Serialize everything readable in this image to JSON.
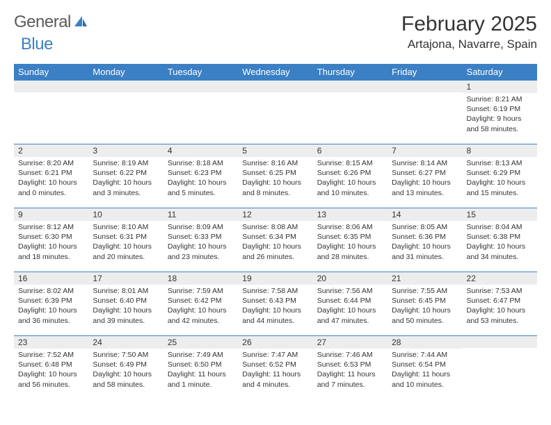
{
  "brand": {
    "word1": "General",
    "word2": "Blue"
  },
  "title": "February 2025",
  "location": "Artajona, Navarre, Spain",
  "colors": {
    "header_bg": "#3b7fc4",
    "header_text": "#ffffff",
    "daynum_bg": "#ededed",
    "border": "#3b7fc4",
    "text": "#333333",
    "logo_gray": "#5a5a5a",
    "logo_blue": "#3b7fc4"
  },
  "weekdays": [
    "Sunday",
    "Monday",
    "Tuesday",
    "Wednesday",
    "Thursday",
    "Friday",
    "Saturday"
  ],
  "weeks": [
    [
      null,
      null,
      null,
      null,
      null,
      null,
      {
        "n": "1",
        "sr": "8:21 AM",
        "ss": "6:19 PM",
        "dl": "9 hours and 58 minutes."
      }
    ],
    [
      {
        "n": "2",
        "sr": "8:20 AM",
        "ss": "6:21 PM",
        "dl": "10 hours and 0 minutes."
      },
      {
        "n": "3",
        "sr": "8:19 AM",
        "ss": "6:22 PM",
        "dl": "10 hours and 3 minutes."
      },
      {
        "n": "4",
        "sr": "8:18 AM",
        "ss": "6:23 PM",
        "dl": "10 hours and 5 minutes."
      },
      {
        "n": "5",
        "sr": "8:16 AM",
        "ss": "6:25 PM",
        "dl": "10 hours and 8 minutes."
      },
      {
        "n": "6",
        "sr": "8:15 AM",
        "ss": "6:26 PM",
        "dl": "10 hours and 10 minutes."
      },
      {
        "n": "7",
        "sr": "8:14 AM",
        "ss": "6:27 PM",
        "dl": "10 hours and 13 minutes."
      },
      {
        "n": "8",
        "sr": "8:13 AM",
        "ss": "6:29 PM",
        "dl": "10 hours and 15 minutes."
      }
    ],
    [
      {
        "n": "9",
        "sr": "8:12 AM",
        "ss": "6:30 PM",
        "dl": "10 hours and 18 minutes."
      },
      {
        "n": "10",
        "sr": "8:10 AM",
        "ss": "6:31 PM",
        "dl": "10 hours and 20 minutes."
      },
      {
        "n": "11",
        "sr": "8:09 AM",
        "ss": "6:33 PM",
        "dl": "10 hours and 23 minutes."
      },
      {
        "n": "12",
        "sr": "8:08 AM",
        "ss": "6:34 PM",
        "dl": "10 hours and 26 minutes."
      },
      {
        "n": "13",
        "sr": "8:06 AM",
        "ss": "6:35 PM",
        "dl": "10 hours and 28 minutes."
      },
      {
        "n": "14",
        "sr": "8:05 AM",
        "ss": "6:36 PM",
        "dl": "10 hours and 31 minutes."
      },
      {
        "n": "15",
        "sr": "8:04 AM",
        "ss": "6:38 PM",
        "dl": "10 hours and 34 minutes."
      }
    ],
    [
      {
        "n": "16",
        "sr": "8:02 AM",
        "ss": "6:39 PM",
        "dl": "10 hours and 36 minutes."
      },
      {
        "n": "17",
        "sr": "8:01 AM",
        "ss": "6:40 PM",
        "dl": "10 hours and 39 minutes."
      },
      {
        "n": "18",
        "sr": "7:59 AM",
        "ss": "6:42 PM",
        "dl": "10 hours and 42 minutes."
      },
      {
        "n": "19",
        "sr": "7:58 AM",
        "ss": "6:43 PM",
        "dl": "10 hours and 44 minutes."
      },
      {
        "n": "20",
        "sr": "7:56 AM",
        "ss": "6:44 PM",
        "dl": "10 hours and 47 minutes."
      },
      {
        "n": "21",
        "sr": "7:55 AM",
        "ss": "6:45 PM",
        "dl": "10 hours and 50 minutes."
      },
      {
        "n": "22",
        "sr": "7:53 AM",
        "ss": "6:47 PM",
        "dl": "10 hours and 53 minutes."
      }
    ],
    [
      {
        "n": "23",
        "sr": "7:52 AM",
        "ss": "6:48 PM",
        "dl": "10 hours and 56 minutes."
      },
      {
        "n": "24",
        "sr": "7:50 AM",
        "ss": "6:49 PM",
        "dl": "10 hours and 58 minutes."
      },
      {
        "n": "25",
        "sr": "7:49 AM",
        "ss": "6:50 PM",
        "dl": "11 hours and 1 minute."
      },
      {
        "n": "26",
        "sr": "7:47 AM",
        "ss": "6:52 PM",
        "dl": "11 hours and 4 minutes."
      },
      {
        "n": "27",
        "sr": "7:46 AM",
        "ss": "6:53 PM",
        "dl": "11 hours and 7 minutes."
      },
      {
        "n": "28",
        "sr": "7:44 AM",
        "ss": "6:54 PM",
        "dl": "11 hours and 10 minutes."
      },
      null
    ]
  ],
  "labels": {
    "sunrise": "Sunrise:",
    "sunset": "Sunset:",
    "daylight": "Daylight:"
  }
}
